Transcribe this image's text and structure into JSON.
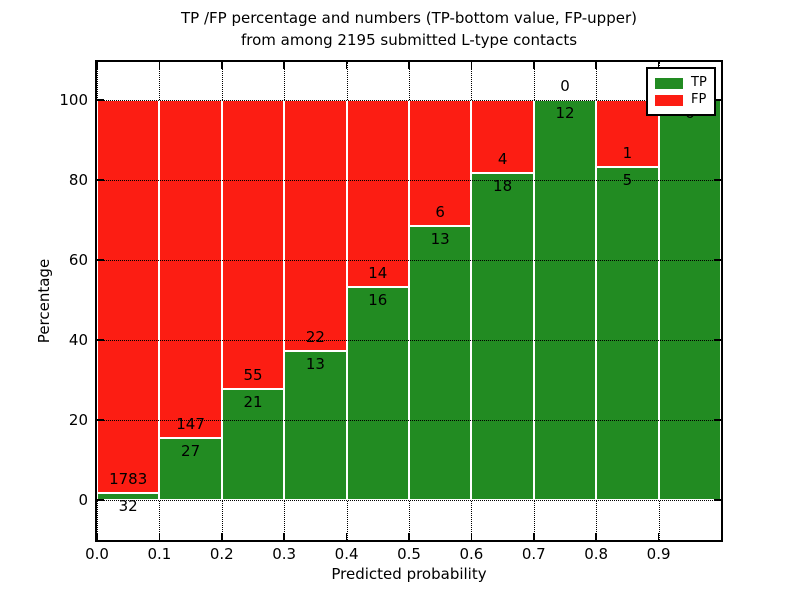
{
  "figure": {
    "background": "#ffffff",
    "title_line1": "TP /FP percentage and numbers (TP-bottom value, FP-upper)",
    "title_line2": "from among 2195 submitted L-type contacts"
  },
  "chart_data": {
    "type": "bar",
    "stacked": true,
    "normalized_to_percent": true,
    "title": "TP /FP percentage and numbers (TP-bottom value, FP-upper)\nfrom among 2195 submitted L-type contacts",
    "xlabel": "Predicted probability",
    "ylabel": "Percentage",
    "total_contacts": 2195,
    "xlim": [
      0.0,
      1.0
    ],
    "ylim": [
      -10,
      109.5
    ],
    "y_ticks": [
      0,
      20,
      40,
      60,
      80,
      100
    ],
    "y_tick_labels": [
      "0",
      "20",
      "40",
      "60",
      "80",
      "100"
    ],
    "x_ticks": [
      0.0,
      0.1,
      0.2,
      0.3,
      0.4,
      0.5,
      0.6,
      0.7,
      0.8,
      0.9
    ],
    "x_tick_labels": [
      "0.0",
      "0.1",
      "0.2",
      "0.3",
      "0.4",
      "0.5",
      "0.6",
      "0.7",
      "0.8",
      "0.9"
    ],
    "grid": {
      "style": "dotted",
      "color": "#000000",
      "horizontal": true,
      "vertical": true
    },
    "legend": {
      "position": "upper right",
      "entries": [
        {
          "label": "TP",
          "color": "#228b22"
        },
        {
          "label": "FP",
          "color": "#fc1d13"
        }
      ]
    },
    "label_rule": "FP count printed above green/red boundary, TP count printed below it",
    "bins": [
      {
        "range": "0.0-0.1",
        "tp": 32,
        "fp": 1783
      },
      {
        "range": "0.1-0.2",
        "tp": 27,
        "fp": 147
      },
      {
        "range": "0.2-0.3",
        "tp": 21,
        "fp": 55
      },
      {
        "range": "0.3-0.4",
        "tp": 13,
        "fp": 22
      },
      {
        "range": "0.4-0.5",
        "tp": 16,
        "fp": 14
      },
      {
        "range": "0.5-0.6",
        "tp": 13,
        "fp": 6
      },
      {
        "range": "0.6-0.7",
        "tp": 18,
        "fp": 4
      },
      {
        "range": "0.7-0.8",
        "tp": 12,
        "fp": 0
      },
      {
        "range": "0.8-0.9",
        "tp": 5,
        "fp": 1
      },
      {
        "range": "0.9-1.0",
        "tp": 6,
        "fp": 0
      }
    ]
  },
  "colors": {
    "tp_green": "#228b22",
    "fp_red": "#fc1d13",
    "grid": "#000000",
    "frame": "#000000",
    "bar_edge": "#ffffff",
    "background": "#ffffff"
  }
}
